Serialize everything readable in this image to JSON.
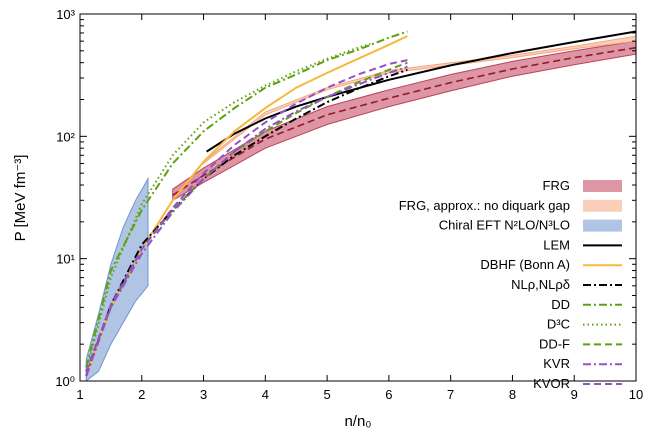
{
  "chart_data": {
    "type": "line",
    "xlabel": "n/n₀",
    "ylabel": "P [MeV fm⁻³]",
    "xlim": [
      1,
      10
    ],
    "ylim": [
      1,
      1000
    ],
    "yscale": "log",
    "x_ticks": [
      "1",
      "2",
      "3",
      "4",
      "5",
      "6",
      "7",
      "8",
      "9",
      "10"
    ],
    "y_ticks": [
      "10⁰",
      "10¹",
      "10²",
      "10³"
    ],
    "legend_position": "right",
    "bands": [
      {
        "name": "FRG",
        "color": "#c0405a",
        "x": [
          2.5,
          3,
          4,
          5,
          6,
          7,
          8,
          9,
          10
        ],
        "lower": [
          30,
          42,
          80,
          125,
          175,
          235,
          310,
          385,
          470
        ],
        "upper": [
          37,
          55,
          110,
          175,
          240,
          320,
          410,
          500,
          600
        ],
        "central": [
          33,
          48,
          95,
          150,
          205,
          275,
          355,
          440,
          530
        ]
      },
      {
        "name": "FRG, approx.: no diquark gap",
        "color": "#f5a77f",
        "x": [
          3,
          4,
          5,
          6,
          7,
          8,
          9,
          10
        ],
        "lower": [
          60,
          150,
          240,
          330,
          380,
          440,
          520,
          600
        ],
        "upper": [
          62,
          158,
          250,
          345,
          400,
          460,
          545,
          660
        ]
      },
      {
        "name": "Chiral EFT N²LO/N³LO",
        "color": "#6f95cc",
        "x": [
          1.1,
          1.3,
          1.5,
          1.7,
          1.9,
          2.1
        ],
        "lower": [
          1,
          1.2,
          2,
          3,
          4.5,
          6
        ],
        "upper": [
          1.5,
          3.5,
          9,
          18,
          30,
          45
        ]
      }
    ],
    "series": [
      {
        "name": "LEM",
        "color": "#000000",
        "dash": "solid",
        "x": [
          3.05,
          3.5,
          4,
          4.5,
          5,
          6,
          7,
          8,
          9,
          10
        ],
        "y": [
          75,
          105,
          140,
          175,
          210,
          290,
          380,
          480,
          590,
          720
        ]
      },
      {
        "name": "DBHF (Bonn A)",
        "color": "#f5b83d",
        "dash": "solid",
        "x": [
          1.1,
          1.5,
          2,
          2.5,
          3,
          3.5,
          4,
          4.5,
          5,
          5.5,
          6,
          6.3
        ],
        "y": [
          1.1,
          4,
          12,
          30,
          62,
          110,
          170,
          250,
          330,
          430,
          560,
          660
        ]
      },
      {
        "name": "NLρ,NLρδ",
        "color": "#000000",
        "dash": "dashdot",
        "x": [
          1.1,
          1.5,
          2,
          2.5,
          3,
          3.5,
          4,
          4.5,
          5,
          5.5,
          6,
          6.3
        ],
        "y": [
          1.1,
          4.2,
          13,
          25,
          45,
          70,
          100,
          140,
          190,
          245,
          310,
          350
        ]
      },
      {
        "name": "DD",
        "color": "#5fa010",
        "dash": "dashdot",
        "x": [
          1.1,
          1.5,
          2,
          2.5,
          3,
          3.5,
          4,
          4.5,
          5,
          5.5,
          6,
          6.3
        ],
        "y": [
          1.3,
          8,
          25,
          60,
          110,
          170,
          250,
          320,
          420,
          510,
          640,
          720
        ]
      },
      {
        "name": "D³C",
        "color": "#5fa010",
        "dash": "dotted",
        "x": [
          1.1,
          1.5,
          2,
          2.5,
          3,
          3.5,
          4,
          4.5,
          5,
          5.5,
          5.7
        ],
        "y": [
          1.2,
          7,
          28,
          70,
          130,
          190,
          260,
          340,
          430,
          530,
          570
        ]
      },
      {
        "name": "DD-F",
        "color": "#5fa010",
        "dash": "dashed",
        "x": [
          1.1,
          1.5,
          2,
          2.5,
          3,
          3.5,
          4,
          4.5,
          5,
          5.5,
          6,
          6.3
        ],
        "y": [
          1.2,
          4,
          12,
          25,
          45,
          75,
          110,
          155,
          210,
          275,
          350,
          400
        ]
      },
      {
        "name": "KVR",
        "color": "#9350c8",
        "dash": "dashdot",
        "x": [
          1.1,
          1.5,
          2,
          2.5,
          3,
          3.5,
          4,
          4.5,
          5,
          5.5,
          6,
          6.3
        ],
        "y": [
          1.1,
          4,
          11,
          24,
          45,
          75,
          115,
          160,
          210,
          265,
          330,
          370
        ]
      },
      {
        "name": "KVOR",
        "color": "#9350c8",
        "dash": "dashed",
        "x": [
          1.1,
          1.5,
          2,
          2.5,
          3,
          3.5,
          4,
          4.5,
          5,
          5.5,
          6,
          6.3
        ],
        "y": [
          1.2,
          4.2,
          12,
          26,
          50,
          85,
          130,
          185,
          250,
          320,
          390,
          420
        ]
      }
    ]
  }
}
